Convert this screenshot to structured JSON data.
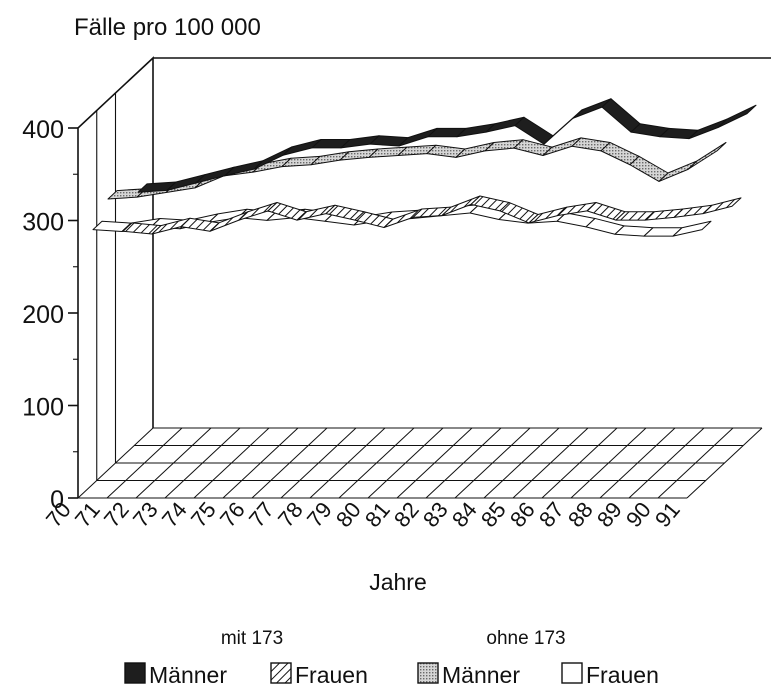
{
  "chart_data": {
    "type": "line",
    "style": "3d ribbon",
    "title": "Fälle pro 100 000",
    "xlabel": "Jahre",
    "ylabel": "",
    "ylim": [
      0,
      400
    ],
    "yticks": [
      0,
      100,
      200,
      300,
      400
    ],
    "grid": true,
    "legend_position": "bottom",
    "categories": [
      "70",
      "71",
      "72",
      "73",
      "74",
      "75",
      "76",
      "77",
      "78",
      "79",
      "80",
      "81",
      "82",
      "83",
      "84",
      "85",
      "86",
      "87",
      "88",
      "89",
      "90",
      "91"
    ],
    "legend_groups": [
      "mit 173",
      "ohne 173"
    ],
    "series": [
      {
        "name": "Männer",
        "group": "mit 173",
        "fill": "#1e1e1e",
        "values": [
          270,
          272,
          280,
          288,
          295,
          310,
          318,
          318,
          322,
          320,
          330,
          330,
          335,
          342,
          322,
          350,
          362,
          335,
          330,
          328,
          340,
          355
        ]
      },
      {
        "name": "Frauen",
        "group": "mit 173",
        "fill": "hatch",
        "values": [
          243,
          240,
          248,
          243,
          255,
          265,
          255,
          262,
          255,
          247,
          258,
          260,
          272,
          265,
          252,
          260,
          265,
          255,
          255,
          258,
          262,
          270
        ]
      },
      {
        "name": "Männer",
        "group": "ohne 173",
        "fill": "#b4b4b4",
        "values": [
          293,
          295,
          300,
          305,
          318,
          322,
          328,
          330,
          335,
          338,
          340,
          342,
          338,
          345,
          348,
          340,
          350,
          345,
          330,
          312,
          325,
          345
        ]
      },
      {
        "name": "Frauen",
        "group": "ohne 173",
        "fill": "#ffffff",
        "values": [
          275,
          273,
          278,
          276,
          283,
          288,
          285,
          288,
          284,
          280,
          285,
          287,
          290,
          293,
          286,
          282,
          284,
          278,
          270,
          268,
          268,
          275
        ]
      }
    ]
  }
}
